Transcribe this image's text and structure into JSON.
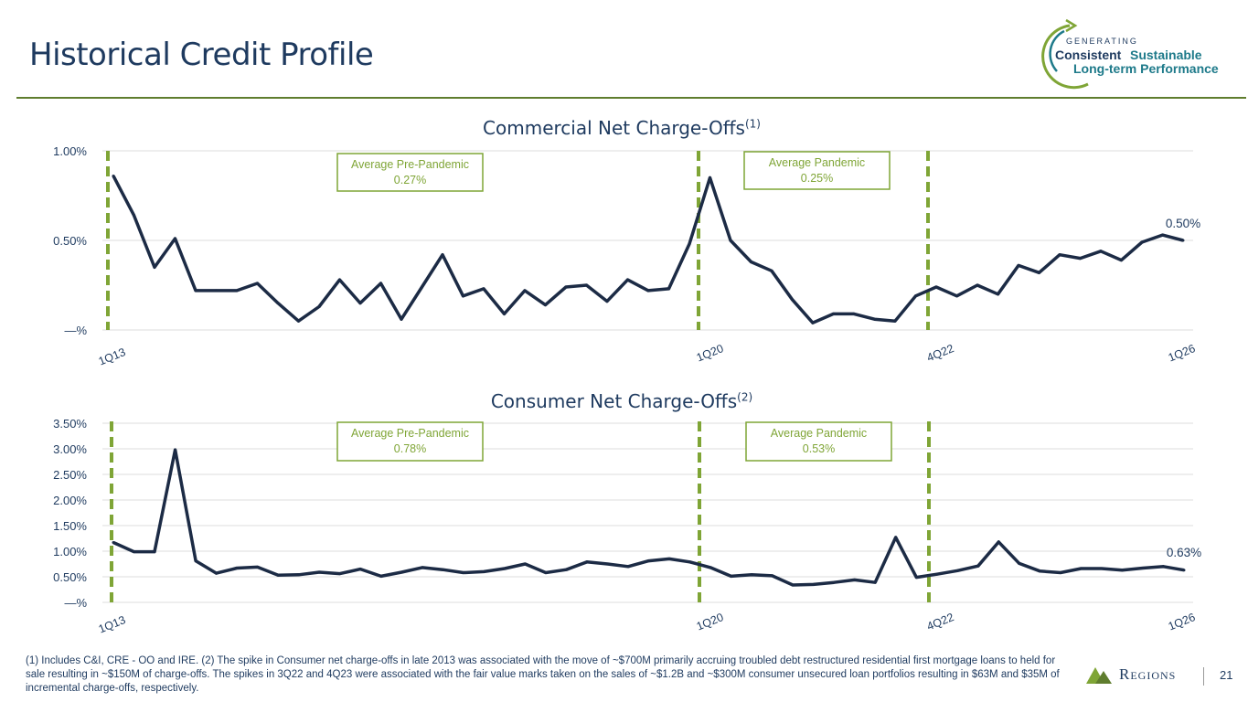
{
  "page": {
    "title": "Historical Credit Profile",
    "page_number": "21",
    "footnote": "(1) Includes C&I, CRE - OO and IRE.  (2) The spike in Consumer net charge-offs in late 2013 was associated with the move of ~$700M primarily accruing troubled debt restructured residential first mortgage loans to held for sale resulting in ~$150M of charge-offs. The spikes in 3Q22 and 4Q23 were associated with the fair value marks taken on the sales of ~$1.2B and ~$300M consumer unsecured loan portfolios resulting in $63M and $35M of incremental charge-offs, respectively.",
    "brand": "Regions"
  },
  "logo": {
    "line1": "GENERATING",
    "line2a": "Consistent",
    "line2b": "Sustainable",
    "line3": "Long-term Performance"
  },
  "colors": {
    "line": "#1c2b45",
    "accent": "#7fa536",
    "text": "#1e3a5f"
  },
  "chart_data": [
    {
      "type": "line",
      "title": "Commercial Net Charge-Offs",
      "title_sup": "(1)",
      "yticks": [
        "—%",
        "0.50%",
        "1.00%"
      ],
      "ylim": [
        0,
        1.0
      ],
      "xtick_labels": [
        "1Q13",
        "1Q20",
        "4Q22",
        "1Q26"
      ],
      "last_label": "0.50%",
      "annotations": [
        {
          "label": "Average Pre-Pandemic",
          "value": "0.27%"
        },
        {
          "label": "Average Pandemic",
          "value": "0.25%"
        }
      ],
      "values": [
        0.86,
        0.64,
        0.35,
        0.51,
        0.22,
        0.22,
        0.22,
        0.26,
        0.15,
        0.05,
        0.13,
        0.28,
        0.15,
        0.26,
        0.06,
        0.24,
        0.42,
        0.19,
        0.23,
        0.09,
        0.22,
        0.14,
        0.24,
        0.25,
        0.16,
        0.28,
        0.22,
        0.23,
        0.48,
        0.85,
        0.5,
        0.38,
        0.33,
        0.17,
        0.04,
        0.09,
        0.09,
        0.06,
        0.05,
        0.19,
        0.24,
        0.19,
        0.25,
        0.2,
        0.36,
        0.32,
        0.42,
        0.4,
        0.44,
        0.39,
        0.49,
        0.53,
        0.5
      ]
    },
    {
      "type": "line",
      "title": "Consumer Net Charge-Offs",
      "title_sup": "(2)",
      "yticks": [
        "—%",
        "0.50%",
        "1.00%",
        "1.50%",
        "2.00%",
        "2.50%",
        "3.00%",
        "3.50%"
      ],
      "ylim": [
        0,
        3.5
      ],
      "xtick_labels": [
        "1Q13",
        "1Q20",
        "4Q22",
        "1Q26"
      ],
      "last_label": "0.63%",
      "annotations": [
        {
          "label": "Average Pre-Pandemic",
          "value": "0.78%"
        },
        {
          "label": "Average Pandemic",
          "value": "0.53%"
        }
      ],
      "values": [
        1.17,
        0.99,
        0.99,
        2.98,
        0.81,
        0.57,
        0.67,
        0.69,
        0.53,
        0.54,
        0.59,
        0.56,
        0.65,
        0.51,
        0.59,
        0.68,
        0.64,
        0.58,
        0.6,
        0.66,
        0.75,
        0.58,
        0.64,
        0.79,
        0.75,
        0.7,
        0.81,
        0.85,
        0.79,
        0.68,
        0.51,
        0.54,
        0.52,
        0.34,
        0.35,
        0.39,
        0.44,
        0.39,
        1.27,
        0.49,
        0.55,
        0.62,
        0.71,
        1.18,
        0.76,
        0.61,
        0.58,
        0.66,
        0.66,
        0.63,
        0.67,
        0.7,
        0.63
      ]
    }
  ]
}
